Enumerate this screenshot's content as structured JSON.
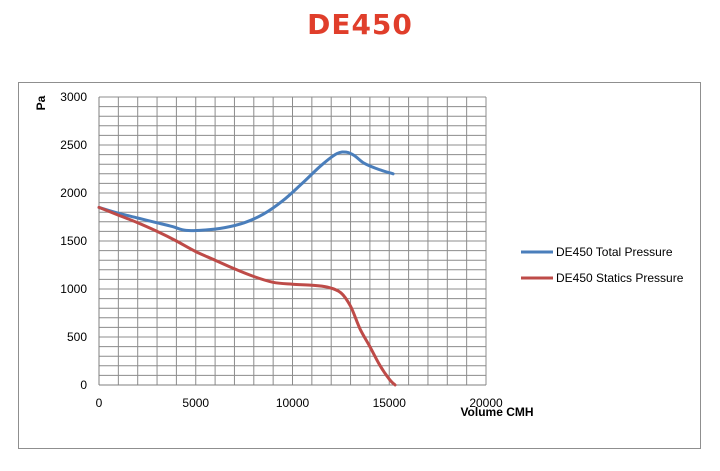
{
  "title": "DE450",
  "colors": {
    "title": "#e03e2b",
    "total": "#4a7ebb",
    "static": "#be4b48",
    "grid": "#8c8c8c"
  },
  "chart_data": {
    "type": "line",
    "title": "DE450",
    "xlabel": "Volume CMH",
    "ylabel": "Pa",
    "xlim": [
      0,
      20000
    ],
    "ylim": [
      0,
      3000
    ],
    "xticks": [
      "0",
      "5000",
      "10000",
      "15000",
      "20000"
    ],
    "yticks": [
      "0",
      "500",
      "1000",
      "1500",
      "2000",
      "2500",
      "3000"
    ],
    "grid": true,
    "legend_position": "right",
    "series": [
      {
        "name": "DE450 Total Pressure",
        "color": "#4a7ebb",
        "x": [
          0,
          1000,
          2000,
          3000,
          3800,
          4500,
          5500,
          6500,
          7500,
          8500,
          9500,
          10500,
          11500,
          12300,
          12800,
          13200,
          13700,
          14400,
          15200
        ],
        "y": [
          1850,
          1790,
          1740,
          1690,
          1650,
          1610,
          1615,
          1640,
          1690,
          1780,
          1920,
          2100,
          2290,
          2410,
          2425,
          2390,
          2310,
          2250,
          2200
        ]
      },
      {
        "name": "DE450 Statics Pressure",
        "color": "#be4b48",
        "x": [
          0,
          1000,
          2000,
          3000,
          4000,
          5000,
          6000,
          7000,
          8000,
          9000,
          10000,
          11000,
          11800,
          12500,
          13000,
          13500,
          14000,
          14500,
          15000,
          15300
        ],
        "y": [
          1850,
          1770,
          1690,
          1600,
          1500,
          1390,
          1300,
          1210,
          1130,
          1070,
          1050,
          1040,
          1020,
          960,
          820,
          580,
          400,
          210,
          60,
          0
        ]
      }
    ]
  }
}
